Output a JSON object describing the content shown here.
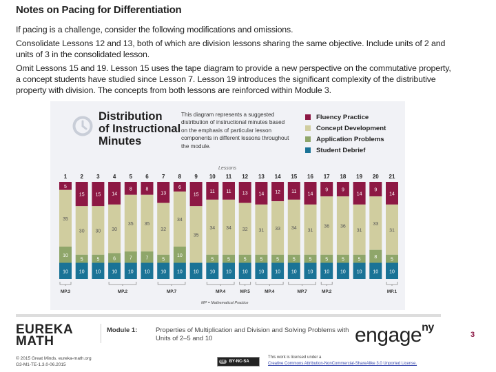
{
  "document": {
    "title": "Notes on Pacing for Differentiation",
    "paragraphs": [
      "If pacing is a challenge, consider the following modifications and omissions.",
      "Consolidate Lessons 12 and 13, both of which are division lessons sharing the same objective.  Include units of 2 and units of 3 in the consolidated lesson.",
      "Omit Lessons 15 and 19.  Lesson 15 uses the tape diagram to provide a new perspective on the commutative property, a concept students have studied since Lesson 7.  Lesson 19 introduces the significant complexity of the distributive property with division.  The concepts from both lessons are reinforced within Module 3."
    ]
  },
  "chart_data": {
    "type": "bar",
    "stacked": true,
    "title": "Distribution of Instructional Minutes",
    "description": "This diagram represents a suggested distribution of instructional minutes based on the emphasis of particular lesson components in different lessons throughout the module.",
    "xlabel": "Lessons",
    "legend_position": "top-right",
    "categories": [
      "1",
      "2",
      "3",
      "4",
      "5",
      "6",
      "7",
      "8",
      "9",
      "10",
      "11",
      "12",
      "13",
      "14",
      "15",
      "16",
      "17",
      "18",
      "19",
      "20",
      "21"
    ],
    "series": [
      {
        "name": "Fluency Practice",
        "color": "#8d1844",
        "values": [
          5,
          15,
          15,
          14,
          8,
          8,
          13,
          6,
          15,
          11,
          11,
          13,
          14,
          12,
          11,
          14,
          9,
          9,
          14,
          9,
          14
        ]
      },
      {
        "name": "Concept Development",
        "color": "#d0cd9f",
        "values": [
          35,
          30,
          30,
          30,
          35,
          35,
          32,
          34,
          35,
          34,
          34,
          32,
          31,
          33,
          34,
          31,
          36,
          36,
          31,
          33,
          31
        ]
      },
      {
        "name": "Application Problems",
        "color": "#8fa66a",
        "values": [
          10,
          5,
          5,
          6,
          7,
          7,
          5,
          10,
          0,
          5,
          5,
          5,
          5,
          5,
          5,
          5,
          5,
          5,
          5,
          8,
          5
        ]
      },
      {
        "name": "Student Debrief",
        "color": "#1a7396",
        "values": [
          10,
          10,
          10,
          10,
          10,
          10,
          10,
          10,
          10,
          10,
          10,
          10,
          10,
          10,
          10,
          10,
          10,
          10,
          10,
          10,
          10
        ]
      }
    ],
    "total_minutes": 60,
    "mp_brackets": [
      {
        "label": "MP.3",
        "from": 1,
        "to": 1
      },
      {
        "label": "MP.2",
        "from": 4,
        "to": 5
      },
      {
        "label": "MP.7",
        "from": 7,
        "to": 8
      },
      {
        "label": "MP.4",
        "from": 10,
        "to": 11
      },
      {
        "label": "MP.5",
        "from": 12,
        "to": 12
      },
      {
        "label": "MP.4",
        "from": 13,
        "to": 14
      },
      {
        "label": "MP.7",
        "from": 15,
        "to": 16
      },
      {
        "label": "MP.2",
        "from": 17,
        "to": 17
      },
      {
        "label": "MP.1",
        "from": 21,
        "to": 21
      }
    ],
    "mp_note": "MP = Mathematical Practice"
  },
  "chart_text": {
    "title_lines": [
      "Distribution",
      "of Instructional",
      "Minutes"
    ],
    "description": "This diagram represents a suggested distribution of instructional minutes based on the emphasis of particular lesson components in different lessons throughout the module.",
    "xlabel": "Lessons",
    "mp_note": "MP = Mathematical Practice",
    "icon": "clock-icon"
  },
  "footer": {
    "logo_line1": "EUREKA",
    "logo_line2": "MATH",
    "module_label": "Module 1:",
    "module_title": "Properties of Multiplication and Division and Solving Problems with Units of 2–5 and 10",
    "engage_main": "engage",
    "engage_sup": "ny",
    "page_number": "3",
    "copyright_line1": "© 2015 Great Minds. eureka-math.org",
    "copyright_line2": "G3-M1-TE-1.3.0-06.2015",
    "cc_badge": "BY-NC-SA",
    "cc_symbol": "cc",
    "license_line1": "This work is licensed under a",
    "license_link": "Creative Commons Attribution-NonCommercial-ShareAlike 3.0 Unported License."
  }
}
